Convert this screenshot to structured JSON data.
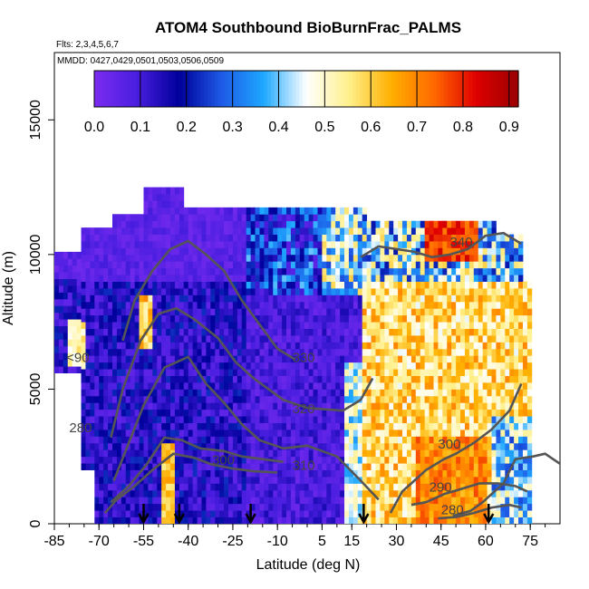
{
  "chart_data": {
    "type": "heatmap",
    "title": "ATOM4 Southbound BioBurnFrac_PALMS",
    "flights_note": "Flts: 2,3,4,5,6,7",
    "dates_note": "MMDD: 0427,0429,0501,0503,0506,0509",
    "xlabel": "Latitude (deg N)",
    "ylabel": "Altitude (m)",
    "xlim": [
      -85,
      85
    ],
    "ylim": [
      0,
      17500
    ],
    "x_ticks": [
      -85,
      -70,
      -55,
      -40,
      -25,
      -10,
      5,
      15,
      30,
      45,
      60,
      75
    ],
    "y_ticks": [
      0,
      5000,
      10000,
      15000
    ],
    "colorbar": {
      "range": [
        0.0,
        0.92
      ],
      "tick_values": [
        0.0,
        0.1,
        0.2,
        0.3,
        0.4,
        0.5,
        0.6,
        0.7,
        0.8,
        0.9
      ],
      "tick_labels": [
        "0.0",
        "0.1",
        "0.2",
        "0.3",
        "0.4",
        "0.5",
        "0.6",
        "0.7",
        "0.8",
        "0.9"
      ],
      "colors": [
        "#7a2cf0",
        "#4a1ee0",
        "#00009a",
        "#1e5ae6",
        "#1ea8ff",
        "#ffffff",
        "#fff08c",
        "#ffb000",
        "#ff6a00",
        "#e00000",
        "#990000"
      ]
    },
    "theta_contours": [
      {
        "level": "280",
        "label": "280",
        "points": [
          [
            49,
            300
          ],
          [
            55,
            480
          ],
          [
            59,
            800
          ],
          [
            66,
            1500
          ],
          [
            70,
            2400
          ],
          [
            76,
            2500
          ],
          [
            80,
            2600
          ],
          [
            86,
            2150
          ],
          [
            89,
            1400
          ]
        ]
      },
      {
        "level": "290",
        "label": "290",
        "points": [
          [
            -68,
            400
          ],
          [
            -64,
            900
          ],
          [
            -58,
            1400
          ],
          [
            -52,
            2000
          ],
          [
            -45,
            2600
          ],
          [
            -38,
            2450
          ],
          [
            -32,
            2200
          ],
          [
            -25,
            2050
          ],
          [
            -18,
            1950
          ],
          [
            -10,
            1900
          ]
        ]
      },
      {
        "level": "300",
        "label": "300",
        "points": [
          [
            -66,
            800
          ],
          [
            -60,
            1400
          ],
          [
            -54,
            2200
          ],
          [
            -48,
            3200
          ],
          [
            -42,
            3100
          ],
          [
            -36,
            2800
          ],
          [
            -28,
            2700
          ],
          [
            -22,
            2500
          ],
          [
            -15,
            2400
          ],
          [
            -8,
            2300
          ]
        ]
      },
      {
        "level": "310",
        "label": "310",
        "points": [
          [
            -65,
            1600
          ],
          [
            -60,
            3000
          ],
          [
            -55,
            4400
          ],
          [
            -48,
            5800
          ],
          [
            -40,
            6200
          ],
          [
            -34,
            5200
          ],
          [
            -28,
            4500
          ],
          [
            -22,
            3700
          ],
          [
            -16,
            3100
          ],
          [
            -8,
            2800
          ],
          [
            0,
            2900
          ],
          [
            10,
            2500
          ],
          [
            18,
            1600
          ],
          [
            24,
            900
          ]
        ]
      },
      {
        "level": "320",
        "label": "320",
        "points": [
          [
            -66,
            3200
          ],
          [
            -62,
            5000
          ],
          [
            -56,
            6800
          ],
          [
            -50,
            7800
          ],
          [
            -44,
            8000
          ],
          [
            -38,
            7600
          ],
          [
            -30,
            6900
          ],
          [
            -24,
            6000
          ],
          [
            -18,
            5400
          ],
          [
            -8,
            4600
          ],
          [
            0,
            4300
          ],
          [
            12,
            4200
          ],
          [
            18,
            4600
          ],
          [
            22,
            5400
          ]
        ]
      },
      {
        "level": "330",
        "label": "330",
        "points": [
          [
            -62,
            6800
          ],
          [
            -58,
            8300
          ],
          [
            -52,
            9400
          ],
          [
            -46,
            10200
          ],
          [
            -40,
            10500
          ],
          [
            -34,
            10000
          ],
          [
            -28,
            9400
          ],
          [
            -22,
            8300
          ],
          [
            -16,
            7400
          ],
          [
            -10,
            6500
          ],
          [
            -4,
            6100
          ]
        ]
      },
      {
        "level": "340",
        "label": "340",
        "points": [
          [
            18,
            9900
          ],
          [
            24,
            10300
          ],
          [
            30,
            10200
          ],
          [
            36,
            10100
          ],
          [
            42,
            9900
          ],
          [
            48,
            10000
          ],
          [
            54,
            10200
          ],
          [
            60,
            10700
          ],
          [
            66,
            10800
          ],
          [
            72,
            10400
          ]
        ]
      },
      {
        "level": "300",
        "label": "300",
        "points": [
          [
            28,
            400
          ],
          [
            32,
            1200
          ],
          [
            36,
            1600
          ],
          [
            40,
            2000
          ],
          [
            46,
            2400
          ],
          [
            50,
            2600
          ],
          [
            56,
            3000
          ],
          [
            62,
            3500
          ],
          [
            68,
            4200
          ],
          [
            72,
            5200
          ]
        ]
      },
      {
        "level": "290",
        "label": "290",
        "points": [
          [
            35,
            700
          ],
          [
            40,
            800
          ],
          [
            46,
            1100
          ],
          [
            52,
            1300
          ],
          [
            58,
            1500
          ],
          [
            64,
            1500
          ],
          [
            70,
            1400
          ],
          [
            74,
            1200
          ]
        ]
      },
      {
        "level": "280",
        "label": "280",
        "points": [
          [
            44,
            200
          ],
          [
            50,
            250
          ],
          [
            56,
            400
          ],
          [
            62,
            600
          ],
          [
            68,
            700
          ],
          [
            72,
            600
          ]
        ]
      }
    ],
    "contour_labels": [
      {
        "text": "<90",
        "x": -81,
        "y": 6000
      },
      {
        "text": "280",
        "x": -80,
        "y": 3400
      },
      {
        "text": "300",
        "x": -32,
        "y": 2200
      },
      {
        "text": "310",
        "x": -5,
        "y": 2000
      },
      {
        "text": "320",
        "x": -5,
        "y": 4100
      },
      {
        "text": "330",
        "x": -5,
        "y": 6000
      },
      {
        "text": "340",
        "x": 48,
        "y": 10300
      },
      {
        "text": "300",
        "x": 44,
        "y": 2800
      },
      {
        "text": "290",
        "x": 41,
        "y": 1200
      },
      {
        "text": "280",
        "x": 45,
        "y": 350
      }
    ],
    "arrows_latitude": [
      -55,
      -43,
      -19,
      19,
      61
    ]
  }
}
